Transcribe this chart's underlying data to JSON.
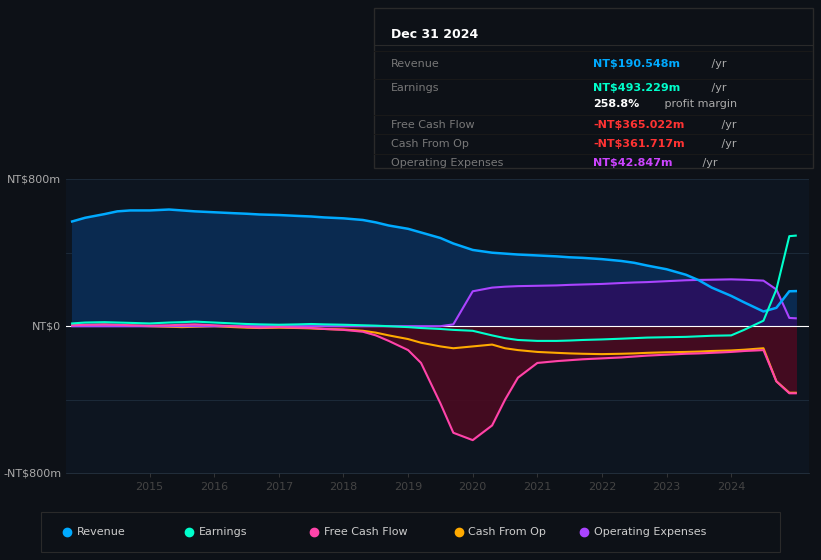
{
  "bg_color": "#0d1117",
  "plot_bg_color": "#0d1520",
  "ylim": [
    -800,
    800
  ],
  "xlim_start": 2013.7,
  "xlim_end": 2025.2,
  "xticks": [
    2015,
    2016,
    2017,
    2018,
    2019,
    2020,
    2021,
    2022,
    2023,
    2024
  ],
  "ylabel_top": "NT$800m",
  "ylabel_zero": "NT$0",
  "ylabel_bottom": "-NT$800m",
  "info_box": {
    "title": "Dec 31 2024",
    "rows": [
      {
        "label": "Revenue",
        "value": "NT$190.548m /yr",
        "value_color": "#00aaff"
      },
      {
        "label": "Earnings",
        "value": "NT$493.229m /yr",
        "value_color": "#00ffcc"
      },
      {
        "label": "",
        "value": "258.8% profit margin",
        "value_color": "#ffffff",
        "bold_prefix": "258.8%"
      },
      {
        "label": "Free Cash Flow",
        "value": "-NT$365.022m /yr",
        "value_color": "#ff3333"
      },
      {
        "label": "Cash From Op",
        "value": "-NT$361.717m /yr",
        "value_color": "#ff3333"
      },
      {
        "label": "Operating Expenses",
        "value": "NT$42.847m /yr",
        "value_color": "#cc44ff"
      }
    ]
  },
  "legend": [
    {
      "label": "Revenue",
      "color": "#00aaff"
    },
    {
      "label": "Earnings",
      "color": "#00ffcc"
    },
    {
      "label": "Free Cash Flow",
      "color": "#ff44aa"
    },
    {
      "label": "Cash From Op",
      "color": "#ffaa00"
    },
    {
      "label": "Operating Expenses",
      "color": "#aa44ff"
    }
  ],
  "revenue_color": "#00aaff",
  "revenue_fill": "#0a2a50",
  "earnings_color": "#00ffcc",
  "fcf_color": "#ff44aa",
  "fcf_fill": "#4a0a20",
  "cfo_color": "#ffaa00",
  "opex_color": "#aa44ff",
  "opex_fill": "#2a1060",
  "series": {
    "years": [
      2013.8,
      2014.0,
      2014.3,
      2014.5,
      2014.7,
      2015.0,
      2015.3,
      2015.5,
      2015.7,
      2016.0,
      2016.3,
      2016.5,
      2016.7,
      2017.0,
      2017.3,
      2017.5,
      2017.7,
      2018.0,
      2018.3,
      2018.5,
      2018.7,
      2019.0,
      2019.2,
      2019.5,
      2019.7,
      2020.0,
      2020.3,
      2020.5,
      2020.7,
      2021.0,
      2021.3,
      2021.5,
      2021.7,
      2022.0,
      2022.3,
      2022.5,
      2022.7,
      2023.0,
      2023.3,
      2023.5,
      2023.7,
      2024.0,
      2024.2,
      2024.5,
      2024.7,
      2024.9,
      2025.0
    ],
    "revenue": [
      570,
      590,
      610,
      625,
      630,
      630,
      635,
      630,
      625,
      620,
      615,
      612,
      608,
      605,
      600,
      597,
      592,
      587,
      578,
      565,
      548,
      530,
      510,
      480,
      450,
      415,
      400,
      395,
      390,
      385,
      380,
      375,
      372,
      365,
      355,
      345,
      330,
      310,
      280,
      250,
      210,
      165,
      130,
      80,
      100,
      190,
      191
    ],
    "earnings": [
      15,
      20,
      22,
      20,
      18,
      15,
      20,
      22,
      25,
      20,
      15,
      12,
      10,
      8,
      10,
      12,
      10,
      8,
      5,
      3,
      0,
      -5,
      -10,
      -15,
      -20,
      -25,
      -50,
      -65,
      -75,
      -80,
      -80,
      -78,
      -75,
      -72,
      -68,
      -65,
      -62,
      -60,
      -58,
      -55,
      -52,
      -50,
      -20,
      30,
      200,
      490,
      493
    ],
    "free_cash_flow": [
      5,
      8,
      10,
      8,
      5,
      3,
      5,
      8,
      10,
      5,
      0,
      -5,
      -8,
      -5,
      -8,
      -10,
      -15,
      -20,
      -30,
      -50,
      -80,
      -130,
      -200,
      -420,
      -580,
      -620,
      -540,
      -400,
      -280,
      -200,
      -190,
      -185,
      -180,
      -175,
      -170,
      -165,
      -160,
      -155,
      -150,
      -148,
      -145,
      -140,
      -135,
      -130,
      -300,
      -365,
      -365
    ],
    "cash_from_op": [
      3,
      5,
      8,
      5,
      3,
      0,
      -3,
      -5,
      -3,
      0,
      -5,
      -8,
      -10,
      -8,
      -10,
      -12,
      -15,
      -18,
      -25,
      -35,
      -50,
      -70,
      -90,
      -110,
      -120,
      -110,
      -100,
      -120,
      -130,
      -140,
      -145,
      -148,
      -150,
      -152,
      -150,
      -148,
      -145,
      -142,
      -140,
      -138,
      -135,
      -132,
      -128,
      -120,
      -300,
      -362,
      -362
    ],
    "operating_expenses": [
      0,
      0,
      0,
      0,
      0,
      0,
      0,
      0,
      0,
      0,
      0,
      0,
      0,
      0,
      0,
      0,
      0,
      0,
      0,
      0,
      0,
      0,
      0,
      0,
      10,
      190,
      210,
      215,
      218,
      220,
      222,
      225,
      227,
      230,
      235,
      238,
      240,
      245,
      250,
      252,
      253,
      255,
      253,
      248,
      200,
      45,
      43
    ]
  }
}
